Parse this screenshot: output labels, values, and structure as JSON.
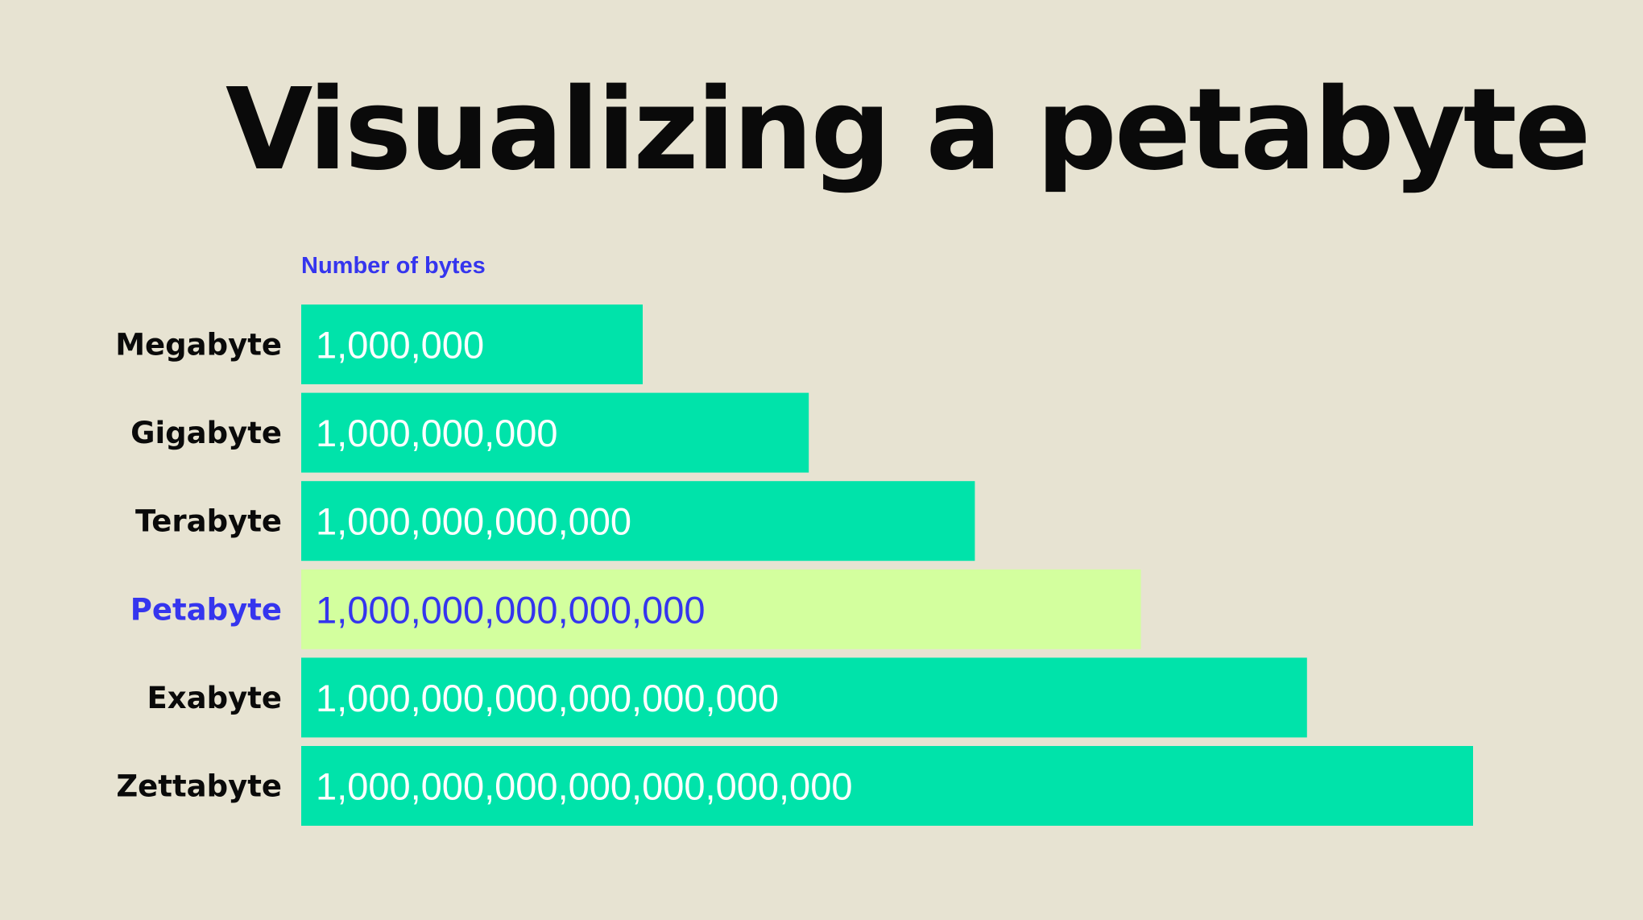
{
  "title": "Visualizing a petabyte",
  "colors": {
    "background": "#e7e3d2",
    "bar": "#00e3aa",
    "highlight_bar": "#d3ff9e",
    "highlight_text": "#3535ee",
    "label_text": "#0a0a0a",
    "value_text": "#ffffff"
  },
  "chart_data": {
    "type": "bar",
    "orientation": "horizontal",
    "title": "Visualizing a petabyte",
    "axis_label": "Number of bytes",
    "categories": [
      "Megabyte",
      "Gigabyte",
      "Terabyte",
      "Petabyte",
      "Exabyte",
      "Zettabyte"
    ],
    "value_labels": [
      "1,000,000",
      "1,000,000,000",
      "1,000,000,000,000",
      "1,000,000,000,000,000",
      "1,000,000,000,000,000,000",
      "1,000,000,000,000,000,000,000"
    ],
    "exponents": [
      6,
      9,
      12,
      15,
      18,
      21
    ],
    "highlight": "Petabyte",
    "grid": false,
    "legend": "none"
  }
}
